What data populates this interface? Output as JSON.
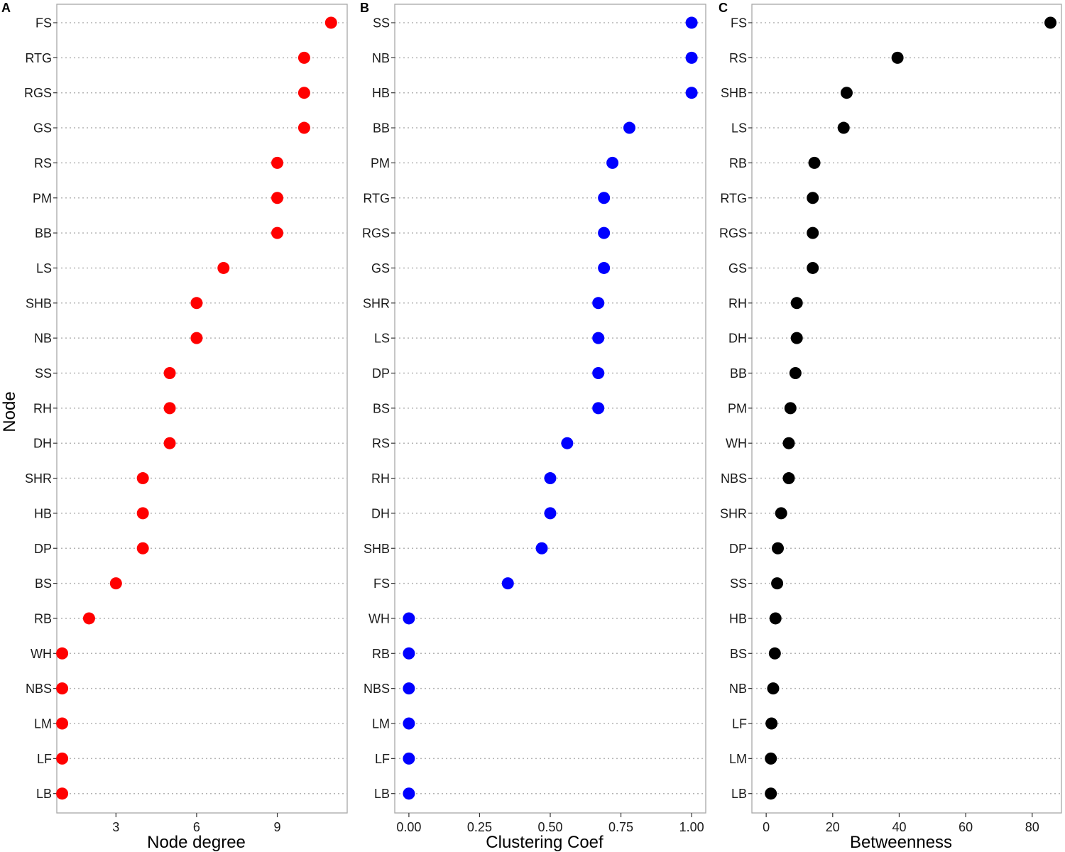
{
  "figure": {
    "y_axis_title": "Node"
  },
  "chart_data": [
    {
      "type": "scatter",
      "tag": "A",
      "xlabel": "Node degree",
      "ylabel": "Node",
      "xlim": [
        0.8,
        11.6
      ],
      "xticks": [
        3,
        6,
        9
      ],
      "x_tick_labels": [
        "3",
        "6",
        "9"
      ],
      "color": "#ff0000",
      "grid": "horizontal dotted",
      "categories": [
        "FS",
        "RTG",
        "RGS",
        "GS",
        "RS",
        "PM",
        "BB",
        "LS",
        "SHB",
        "NB",
        "SS",
        "RH",
        "DH",
        "SHR",
        "HB",
        "DP",
        "BS",
        "RB",
        "WH",
        "NBS",
        "LM",
        "LF",
        "LB"
      ],
      "values": [
        11,
        10,
        10,
        10,
        9,
        9,
        9,
        7,
        6,
        6,
        5,
        5,
        5,
        4,
        4,
        4,
        3,
        2,
        1,
        1,
        1,
        1,
        1
      ]
    },
    {
      "type": "scatter",
      "tag": "B",
      "xlabel": "Clustering Coef",
      "ylabel": "",
      "xlim": [
        -0.05,
        1.05
      ],
      "xticks": [
        0,
        0.25,
        0.5,
        0.75,
        1
      ],
      "x_tick_labels": [
        "0.00",
        "0.25",
        "0.50",
        "0.75",
        "1.00"
      ],
      "color": "#0000ff",
      "grid": "horizontal dotted",
      "categories": [
        "SS",
        "NB",
        "HB",
        "BB",
        "PM",
        "RTG",
        "RGS",
        "GS",
        "SHR",
        "LS",
        "DP",
        "BS",
        "RS",
        "RH",
        "DH",
        "SHB",
        "FS",
        "WH",
        "RB",
        "NBS",
        "LM",
        "LF",
        "LB"
      ],
      "values": [
        1.0,
        1.0,
        1.0,
        0.78,
        0.72,
        0.69,
        0.69,
        0.69,
        0.67,
        0.67,
        0.67,
        0.67,
        0.56,
        0.5,
        0.5,
        0.47,
        0.35,
        0,
        0,
        0,
        0,
        0,
        0
      ]
    },
    {
      "type": "scatter",
      "tag": "C",
      "xlabel": "Betweenness",
      "ylabel": "",
      "xlim": [
        -4.3,
        88.8
      ],
      "xticks": [
        0,
        20,
        40,
        60,
        80
      ],
      "x_tick_labels": [
        "0",
        "20",
        "40",
        "60",
        "80"
      ],
      "color": "#000000",
      "grid": "horizontal dotted",
      "categories": [
        "FS",
        "RS",
        "SHB",
        "LS",
        "RB",
        "RTG",
        "RGS",
        "GS",
        "RH",
        "DH",
        "BB",
        "PM",
        "WH",
        "NBS",
        "SHR",
        "DP",
        "SS",
        "HB",
        "BS",
        "NB",
        "LF",
        "LM",
        "LB"
      ],
      "values": [
        85.5,
        39.5,
        24.2,
        23.3,
        14.5,
        14.0,
        14.0,
        14.0,
        9.2,
        9.2,
        8.8,
        7.3,
        6.8,
        6.8,
        4.5,
        3.5,
        3.3,
        2.8,
        2.6,
        2.1,
        1.6,
        1.4,
        1.4
      ]
    }
  ]
}
